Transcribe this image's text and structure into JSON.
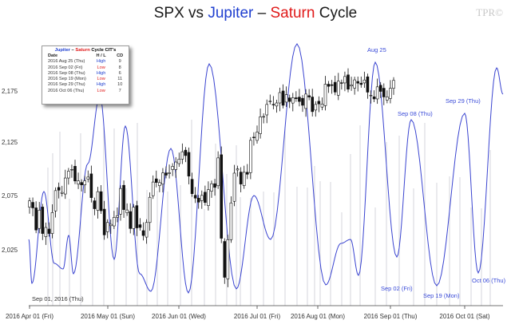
{
  "title": {
    "part1": "SPX vs ",
    "jupiter": "Jupiter",
    "dash": " – ",
    "saturn": "Saturn",
    "part2": " Cycle"
  },
  "watermark": "TPR©",
  "legend": {
    "title_jupiter": "Jupiter",
    "title_dash": " – ",
    "title_saturn": "Saturn",
    "title_rest": " Cycle CIT's",
    "headers": {
      "date": "Date",
      "hl": "H / L",
      "cd": "CD"
    },
    "rows": [
      {
        "date": "2016 Aug 25 (Thu)",
        "hl": "High",
        "cd": "9",
        "kind": "high"
      },
      {
        "date": "2016 Sep 02 (Fri)",
        "hl": "Low",
        "cd": "8",
        "kind": "low"
      },
      {
        "date": "2016 Sep 08 (Thu)",
        "hl": "High",
        "cd": "6",
        "kind": "high"
      },
      {
        "date": "2016 Sep 19 (Mon)",
        "hl": "Low",
        "cd": "11",
        "kind": "low"
      },
      {
        "date": "2016 Sep 29 (Thu)",
        "hl": "High",
        "cd": "10",
        "kind": "high"
      },
      {
        "date": "2016 Oct 06 (Thu)",
        "hl": "Low",
        "cd": "7",
        "kind": "low"
      }
    ]
  },
  "annotations": {
    "aug25": "Aug 25",
    "sep08": "Sep 08 (Thu)",
    "sep29": "Sep 29 (Thu)",
    "sep02": "Sep 02 (Fri)",
    "sep19": "Sep 19 (Mon)",
    "oct06": "Oct 06 (Thu)",
    "current": "Sep 01, 2016 (Thu)"
  },
  "colors": {
    "cycle": "#3a44d0",
    "candle": "#111111",
    "vline": "#b9b9c4",
    "axis": "#444444"
  },
  "chart_data": {
    "type": "line",
    "title": "SPX vs Jupiter – Saturn Cycle",
    "x_range": [
      "2016-04-01",
      "2016-10-12"
    ],
    "x_ticks": [
      "2016 Apr 01 (Fri)",
      "2016 May 01 (Sun)",
      "2016 Jun 01 (Wed)",
      "2016 Jul 01 (Fri)",
      "2016 Aug 01 (Mon)",
      "2016 Sep 01 (Thu)",
      "2016 Oct 01 (Sat)"
    ],
    "y_ticks": [
      "2,025",
      "2,075",
      "2,125",
      "2,175"
    ],
    "ylim": [
      1990,
      2230
    ],
    "series": [
      {
        "name": "SPX",
        "style": "candlestick",
        "close": [
          2072.8,
          2066.1,
          2045.2,
          2063.9,
          2041.9,
          2047.6,
          2041.9,
          2061.7,
          2082.4,
          2082.8,
          2080.7,
          2094.3,
          2100.8,
          2102.4,
          2091.5,
          2091.6,
          2087.8,
          2091.7,
          2095.2,
          2075.8,
          2065.3,
          2081.4,
          2063.4,
          2040.6,
          2052.3,
          2050.6,
          2057.1,
          2058.7,
          2084.4,
          2064.5,
          2064.1,
          2046.6,
          2066.7,
          2047.2,
          2047.6,
          2040.0,
          2052.3,
          2076.1,
          2090.5,
          2090.1,
          2090.0,
          2099.1,
          2097.0,
          2099.3,
          2105.3,
          2109.4,
          2112.1,
          2119.1,
          2115.5,
          2096.1,
          2079.5,
          2075.3,
          2071.5,
          2077.9,
          2071.2,
          2083.3,
          2088.9,
          2085.5,
          2113.3,
          2037.4,
          2000.5,
          2036.1,
          2070.8,
          2098.9,
          2102.9,
          2088.6,
          2099.7,
          2097.9,
          2129.9,
          2132.8,
          2137.7,
          2152.1,
          2152.4,
          2163.8,
          2166.9,
          2163.8,
          2165.2,
          2175.0,
          2163.0,
          2173.0,
          2166.6,
          2170.1,
          2169.2,
          2166.6,
          2163.0,
          2173.6,
          2170.8,
          2157.0,
          2163.8,
          2164.3,
          2164.2,
          2182.9,
          2180.9,
          2181.7,
          2175.5,
          2185.8,
          2184.1,
          2190.2,
          2178.2,
          2182.2,
          2187.0,
          2183.9,
          2182.6,
          2186.9,
          2175.4,
          2172.5,
          2169.0,
          2180.4,
          2176.1,
          2170.9,
          2170.9,
          2179.0,
          2186.5
        ],
        "date_range": [
          "2016-04-01",
          "2016-09-06"
        ]
      },
      {
        "name": "Jupiter – Saturn Cycle",
        "style": "line",
        "peaks": [
          {
            "date": "2016-08-25",
            "label": "Aug 25"
          },
          {
            "date": "2016-09-08",
            "label": "Sep 08 (Thu)"
          },
          {
            "date": "2016-09-29",
            "label": "Sep 29 (Thu)"
          }
        ],
        "troughs": [
          {
            "date": "2016-09-02",
            "label": "Sep 02 (Fri)"
          },
          {
            "date": "2016-09-19",
            "label": "Sep 19 (Mon)"
          },
          {
            "date": "2016-10-06",
            "label": "Oct 06 (Thu)"
          }
        ]
      }
    ]
  }
}
